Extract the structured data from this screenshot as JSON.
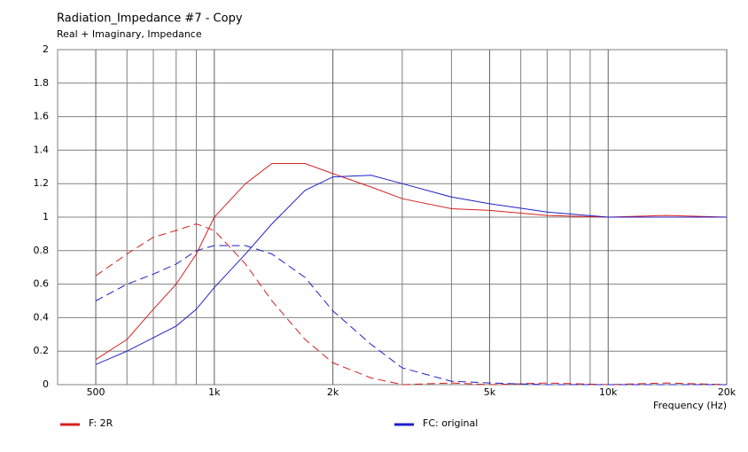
{
  "chart_data": {
    "type": "line",
    "title": "Radiation_Impedance #7 - Copy",
    "subtitle": "Real + Imaginary, Impedance",
    "x_label": "Frequency  (Hz)",
    "x_log": true,
    "grid": true,
    "xlim": [
      400,
      20000
    ],
    "xticks": [
      {
        "value": 500,
        "label": "500"
      },
      {
        "value": 1000,
        "label": "1k"
      },
      {
        "value": 2000,
        "label": "2k"
      },
      {
        "value": 5000,
        "label": "5k"
      },
      {
        "value": 10000,
        "label": "10k"
      },
      {
        "value": 20000,
        "label": "20k"
      }
    ],
    "xminor_ticks": [
      600,
      700,
      800,
      900,
      3000,
      4000,
      6000,
      7000,
      8000,
      9000
    ],
    "ylim": [
      0,
      2
    ],
    "yticks": [
      0,
      0.2,
      0.4,
      0.6,
      0.8,
      1,
      1.2,
      1.4,
      1.6,
      1.8,
      2
    ],
    "x": [
      500,
      600,
      700,
      800,
      900,
      1000,
      1200,
      1400,
      1700,
      2000,
      2500,
      3000,
      4000,
      5000,
      7000,
      10000,
      14000,
      20000
    ],
    "series": [
      {
        "name": "F: 2R",
        "color": "#d42020",
        "values": [
          0.15,
          0.27,
          0.45,
          0.6,
          0.78,
          1.0,
          1.2,
          1.32,
          1.32,
          1.26,
          1.18,
          1.11,
          1.05,
          1.04,
          1.01,
          1.0,
          1.01,
          1.0
        ],
        "imaginary_values": [
          0.65,
          0.78,
          0.88,
          0.92,
          0.96,
          0.92,
          0.72,
          0.5,
          0.27,
          0.13,
          0.04,
          0.0,
          0.01,
          0.0,
          0.01,
          0.0,
          0.01,
          0.0
        ]
      },
      {
        "name": "FC: original",
        "color": "#2020c8",
        "values": [
          0.12,
          0.2,
          0.28,
          0.35,
          0.45,
          0.58,
          0.78,
          0.96,
          1.16,
          1.24,
          1.25,
          1.2,
          1.12,
          1.08,
          1.03,
          1.0,
          1.0,
          1.0
        ],
        "imaginary_values": [
          0.5,
          0.6,
          0.66,
          0.72,
          0.8,
          0.83,
          0.83,
          0.78,
          0.64,
          0.44,
          0.24,
          0.1,
          0.02,
          0.01,
          0.0,
          0.0,
          0.0,
          0.0
        ]
      }
    ]
  }
}
